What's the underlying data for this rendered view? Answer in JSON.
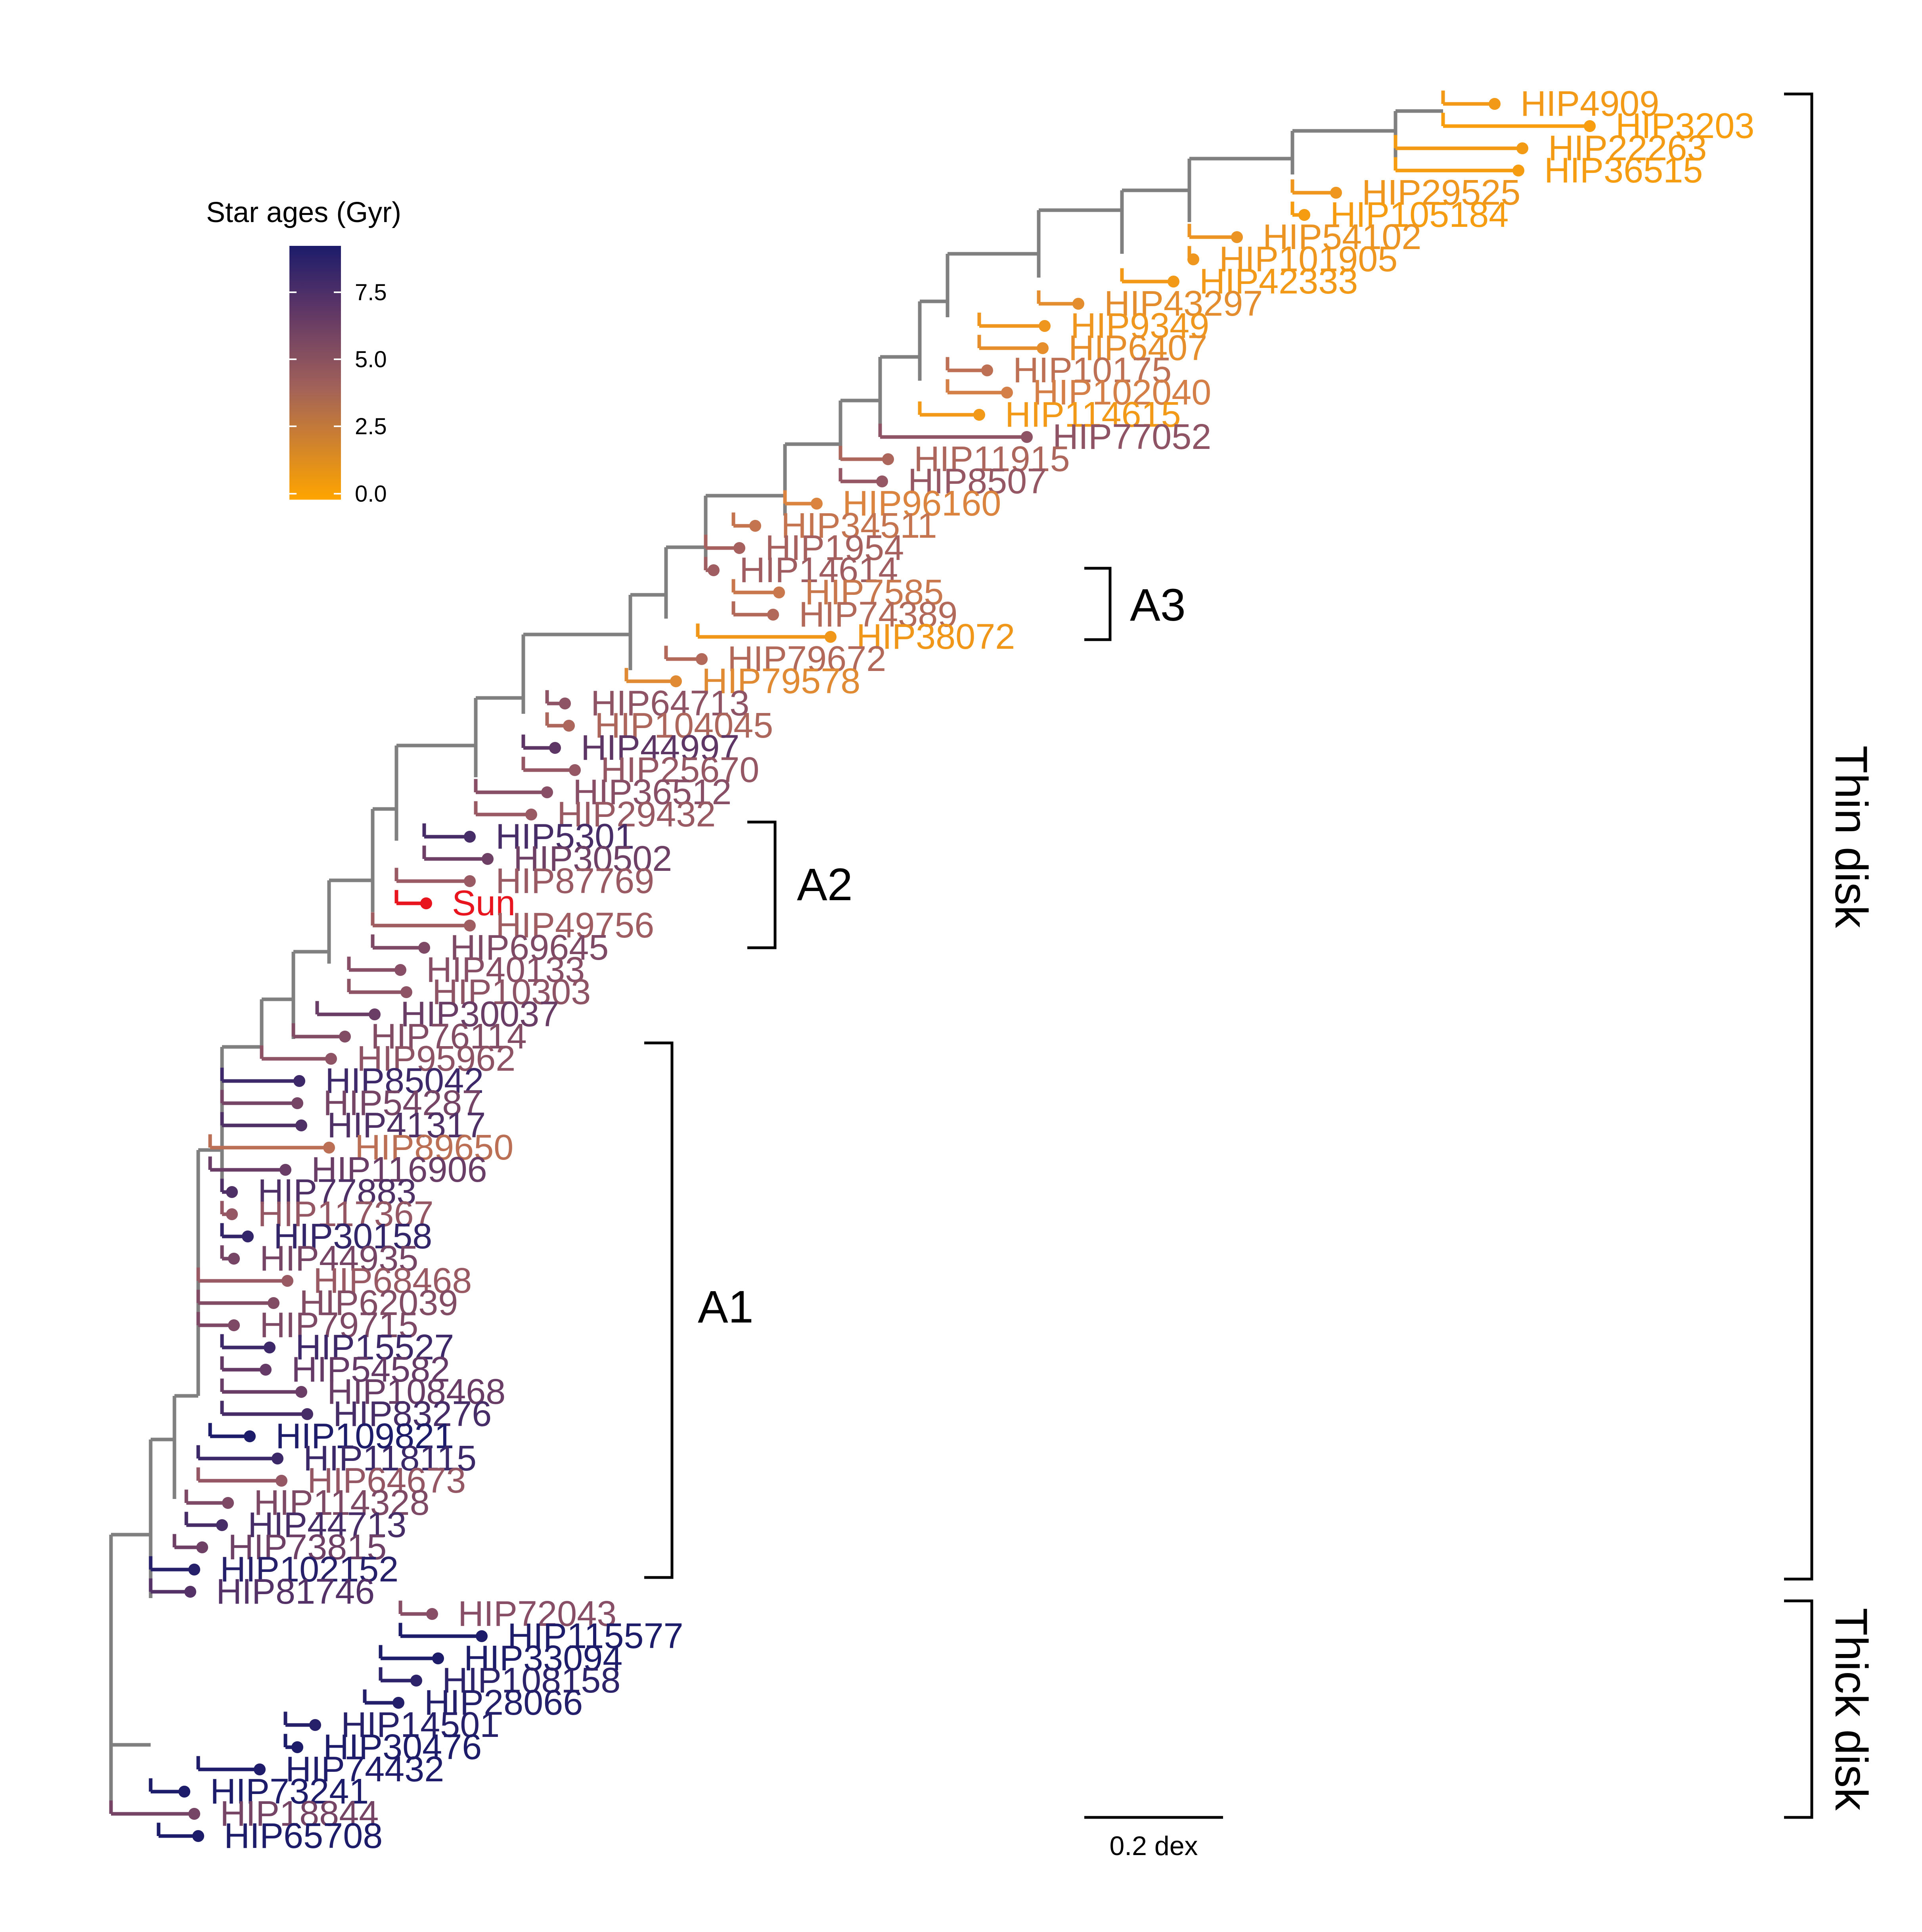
{
  "legend": {
    "title": "Star ages (Gyr)",
    "ticks": [
      "7.5",
      "5.0",
      "2.5",
      "0.0"
    ],
    "color_low": "#FFA500",
    "color_mid": "#A0605A",
    "color_high": "#1C1C6B"
  },
  "scale_bar": {
    "label": "0.2 dex",
    "value_dex": 0.2
  },
  "clades": {
    "thin_disk": "Thin disk",
    "thick_disk": "Thick disk",
    "a1": "A1",
    "a2": "A2",
    "a3": "A3"
  },
  "tips": [
    {
      "label": "HIP4909",
      "age": 0.8
    },
    {
      "label": "HIP3203",
      "age": 0.5
    },
    {
      "label": "HIP22263",
      "age": 0.7
    },
    {
      "label": "HIP36515",
      "age": 0.6
    },
    {
      "label": "HIP29525",
      "age": 1.0
    },
    {
      "label": "HIP105184",
      "age": 0.6
    },
    {
      "label": "HIP54102",
      "age": 1.2
    },
    {
      "label": "HIP101905",
      "age": 1.0
    },
    {
      "label": "HIP42333",
      "age": 0.8
    },
    {
      "label": "HIP43297",
      "age": 1.6
    },
    {
      "label": "HIP9349",
      "age": 1.0
    },
    {
      "label": "HIP6407",
      "age": 1.5
    },
    {
      "label": "HIP10175",
      "age": 3.5
    },
    {
      "label": "HIP102040",
      "age": 2.5
    },
    {
      "label": "HIP114615",
      "age": 0.8
    },
    {
      "label": "HIP77052",
      "age": 5.5
    },
    {
      "label": "HIP11915",
      "age": 4.2
    },
    {
      "label": "HIP8507",
      "age": 5.2
    },
    {
      "label": "HIP96160",
      "age": 2.2
    },
    {
      "label": "HIP34511",
      "age": 3.2
    },
    {
      "label": "HIP1954",
      "age": 4.5
    },
    {
      "label": "HIP14614",
      "age": 4.8
    },
    {
      "label": "HIP7585",
      "age": 3.0
    },
    {
      "label": "HIP74389",
      "age": 4.0
    },
    {
      "label": "HIP38072",
      "age": 0.9
    },
    {
      "label": "HIP79672",
      "age": 4.0
    },
    {
      "label": "HIP79578",
      "age": 1.8
    },
    {
      "label": "HIP64713",
      "age": 5.5
    },
    {
      "label": "HIP104045",
      "age": 4.2
    },
    {
      "label": "HIP44997",
      "age": 7.5
    },
    {
      "label": "HIP25670",
      "age": 5.2
    },
    {
      "label": "HIP36512",
      "age": 5.8
    },
    {
      "label": "HIP29432",
      "age": 5.0
    },
    {
      "label": "HIP5301",
      "age": 8.2
    },
    {
      "label": "HIP30502",
      "age": 6.8
    },
    {
      "label": "HIP87769",
      "age": 5.0
    },
    {
      "label": "Sun",
      "age": 4.6
    },
    {
      "label": "HIP49756",
      "age": 4.8
    },
    {
      "label": "HIP69645",
      "age": 6.2
    },
    {
      "label": "HIP40133",
      "age": 5.8
    },
    {
      "label": "HIP10303",
      "age": 5.5
    },
    {
      "label": "HIP30037",
      "age": 7.0
    },
    {
      "label": "HIP76114",
      "age": 6.0
    },
    {
      "label": "HIP95962",
      "age": 5.5
    },
    {
      "label": "HIP85042",
      "age": 8.5
    },
    {
      "label": "HIP54287",
      "age": 6.5
    },
    {
      "label": "HIP41317",
      "age": 8.0
    },
    {
      "label": "HIP89650",
      "age": 3.6
    },
    {
      "label": "HIP116906",
      "age": 7.0
    },
    {
      "label": "HIP77883",
      "age": 8.0
    },
    {
      "label": "HIP117367",
      "age": 5.2
    },
    {
      "label": "HIP30158",
      "age": 8.8
    },
    {
      "label": "HIP44935",
      "age": 6.5
    },
    {
      "label": "HIP68468",
      "age": 5.0
    },
    {
      "label": "HIP62039",
      "age": 6.0
    },
    {
      "label": "HIP79715",
      "age": 6.2
    },
    {
      "label": "HIP15527",
      "age": 8.5
    },
    {
      "label": "HIP54582",
      "age": 7.2
    },
    {
      "label": "HIP108468",
      "age": 7.0
    },
    {
      "label": "HIP83276",
      "age": 8.2
    },
    {
      "label": "HIP109821",
      "age": 9.5
    },
    {
      "label": "HIP118115",
      "age": 8.6
    },
    {
      "label": "HIP64673",
      "age": 5.2
    },
    {
      "label": "HIP114328",
      "age": 6.2
    },
    {
      "label": "HIP44713",
      "age": 8.2
    },
    {
      "label": "HIP73815",
      "age": 6.8
    },
    {
      "label": "HIP102152",
      "age": 9.2
    },
    {
      "label": "HIP81746",
      "age": 7.8
    },
    {
      "label": "HIP72043",
      "age": 5.8
    },
    {
      "label": "HIP115577",
      "age": 9.5
    },
    {
      "label": "HIP33094",
      "age": 9.5
    },
    {
      "label": "HIP108158",
      "age": 9.0
    },
    {
      "label": "HIP28066",
      "age": 9.3
    },
    {
      "label": "HIP14501",
      "age": 9.2
    },
    {
      "label": "HIP30476",
      "age": 9.6
    },
    {
      "label": "HIP74432",
      "age": 9.4
    },
    {
      "label": "HIP73241",
      "age": 9.5
    },
    {
      "label": "HIP18844",
      "age": 6.5
    },
    {
      "label": "HIP65708",
      "age": 9.5
    }
  ]
}
